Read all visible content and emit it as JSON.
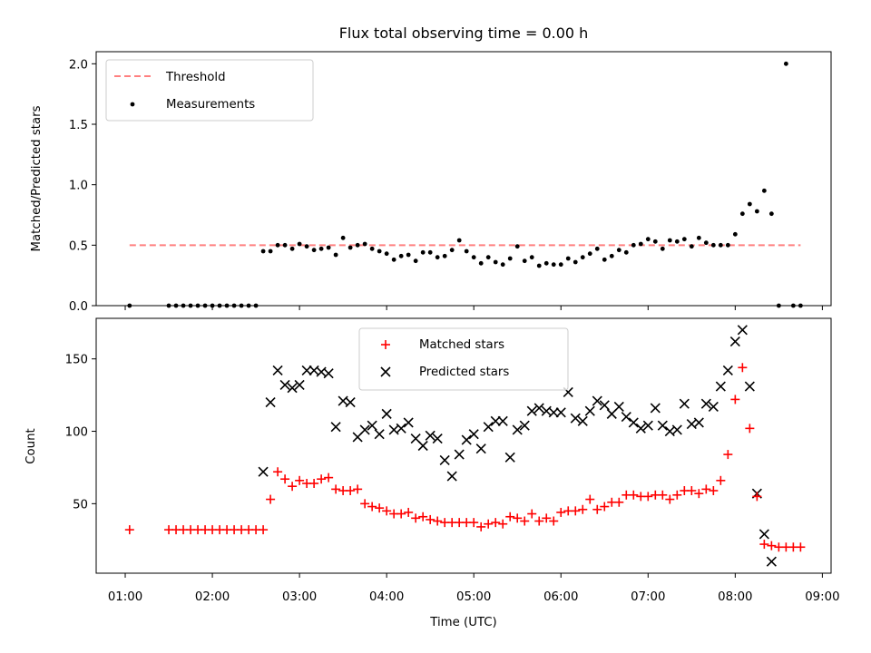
{
  "figure": {
    "title": "Flux total observing time = 0.00 h"
  },
  "colors": {
    "threshold": "#ff8080",
    "measurement": "#000000",
    "matched": "#ff0000",
    "predicted": "#000000"
  },
  "chart_data": [
    {
      "type": "scatter",
      "ylabel": "Matched/Predicted stars",
      "xlabel": "",
      "xlim": [
        "00:40",
        "09:06"
      ],
      "ylim": [
        0,
        2.1
      ],
      "yticks": [
        0.0,
        0.5,
        1.0,
        1.5,
        2.0
      ],
      "ytick_labels": [
        "0.0",
        "0.5",
        "1.0",
        "1.5",
        "2.0"
      ],
      "legend": {
        "position": "upper-left",
        "entries": [
          "Threshold",
          "Measurements"
        ]
      },
      "threshold": {
        "name": "Threshold",
        "y": 0.5,
        "x": [
          "01:03",
          "08:45"
        ],
        "style": "dashed"
      },
      "series": [
        {
          "name": "Measurements",
          "x": [
            "01:03",
            "01:30",
            "01:35",
            "01:40",
            "01:45",
            "01:50",
            "01:55",
            "02:00",
            "02:05",
            "02:10",
            "02:15",
            "02:20",
            "02:25",
            "02:30",
            "02:35",
            "02:40",
            "02:45",
            "02:50",
            "02:55",
            "03:00",
            "03:05",
            "03:10",
            "03:15",
            "03:20",
            "03:25",
            "03:30",
            "03:35",
            "03:40",
            "03:45",
            "03:50",
            "03:55",
            "04:00",
            "04:05",
            "04:10",
            "04:15",
            "04:20",
            "04:25",
            "04:30",
            "04:35",
            "04:40",
            "04:45",
            "04:50",
            "04:55",
            "05:00",
            "05:05",
            "05:10",
            "05:15",
            "05:20",
            "05:25",
            "05:30",
            "05:35",
            "05:40",
            "05:45",
            "05:50",
            "05:55",
            "06:00",
            "06:05",
            "06:10",
            "06:15",
            "06:20",
            "06:25",
            "06:30",
            "06:35",
            "06:40",
            "06:45",
            "06:50",
            "06:55",
            "07:00",
            "07:05",
            "07:10",
            "07:15",
            "07:20",
            "07:25",
            "07:30",
            "07:35",
            "07:40",
            "07:45",
            "07:50",
            "07:55",
            "08:00",
            "08:05",
            "08:10",
            "08:15",
            "08:20",
            "08:25",
            "08:30",
            "08:35",
            "08:40",
            "08:45"
          ],
          "y": [
            0.0,
            0.0,
            0.0,
            0.0,
            0.0,
            0.0,
            0.0,
            0.0,
            0.0,
            0.0,
            0.0,
            0.0,
            0.0,
            0.0,
            0.45,
            0.45,
            0.5,
            0.5,
            0.47,
            0.51,
            0.49,
            0.46,
            0.47,
            0.48,
            0.42,
            0.56,
            0.48,
            0.5,
            0.51,
            0.47,
            0.45,
            0.43,
            0.38,
            0.41,
            0.42,
            0.37,
            0.44,
            0.44,
            0.4,
            0.41,
            0.46,
            0.54,
            0.45,
            0.4,
            0.35,
            0.4,
            0.36,
            0.34,
            0.39,
            0.49,
            0.37,
            0.4,
            0.33,
            0.35,
            0.34,
            0.34,
            0.39,
            0.36,
            0.4,
            0.43,
            0.47,
            0.38,
            0.41,
            0.46,
            0.44,
            0.5,
            0.51,
            0.55,
            0.53,
            0.47,
            0.54,
            0.53,
            0.55,
            0.49,
            0.56,
            0.52,
            0.5,
            0.5,
            0.5,
            0.59,
            0.76,
            0.84,
            0.78,
            0.95,
            0.76,
            0.0,
            2.0,
            0.0,
            0.0
          ]
        }
      ]
    },
    {
      "type": "scatter",
      "ylabel": "Count",
      "xlabel": "Time (UTC)",
      "xlim": [
        "00:40",
        "09:06"
      ],
      "ylim": [
        2,
        178
      ],
      "yticks": [
        50,
        100,
        150
      ],
      "ytick_labels": [
        "50",
        "100",
        "150"
      ],
      "xticks": [
        "01:00",
        "02:00",
        "03:00",
        "04:00",
        "05:00",
        "06:00",
        "07:00",
        "08:00",
        "09:00"
      ],
      "xtick_labels": [
        "01:00",
        "02:00",
        "03:00",
        "04:00",
        "05:00",
        "06:00",
        "07:00",
        "08:00",
        "09:00"
      ],
      "legend": {
        "position": "upper-center",
        "entries": [
          "Matched stars",
          "Predicted stars"
        ]
      },
      "series": [
        {
          "name": "Matched stars",
          "marker": "plus",
          "x": [
            "01:03",
            "01:30",
            "01:35",
            "01:40",
            "01:45",
            "01:50",
            "01:55",
            "02:00",
            "02:05",
            "02:10",
            "02:15",
            "02:20",
            "02:25",
            "02:30",
            "02:35",
            "02:40",
            "02:45",
            "02:50",
            "02:55",
            "03:00",
            "03:05",
            "03:10",
            "03:15",
            "03:20",
            "03:25",
            "03:30",
            "03:35",
            "03:40",
            "03:45",
            "03:50",
            "03:55",
            "04:00",
            "04:05",
            "04:10",
            "04:15",
            "04:20",
            "04:25",
            "04:30",
            "04:35",
            "04:40",
            "04:45",
            "04:50",
            "04:55",
            "05:00",
            "05:05",
            "05:10",
            "05:15",
            "05:20",
            "05:25",
            "05:30",
            "05:35",
            "05:40",
            "05:45",
            "05:50",
            "05:55",
            "06:00",
            "06:05",
            "06:10",
            "06:15",
            "06:20",
            "06:25",
            "06:30",
            "06:35",
            "06:40",
            "06:45",
            "06:50",
            "06:55",
            "07:00",
            "07:05",
            "07:10",
            "07:15",
            "07:20",
            "07:25",
            "07:30",
            "07:35",
            "07:40",
            "07:45",
            "07:50",
            "07:55",
            "08:00",
            "08:05",
            "08:10",
            "08:15",
            "08:20",
            "08:25",
            "08:30",
            "08:35",
            "08:40",
            "08:45"
          ],
          "y": [
            32,
            32,
            32,
            32,
            32,
            32,
            32,
            32,
            32,
            32,
            32,
            32,
            32,
            32,
            32,
            53,
            72,
            67,
            62,
            66,
            64,
            64,
            67,
            68,
            60,
            59,
            59,
            60,
            50,
            48,
            47,
            45,
            43,
            43,
            44,
            40,
            41,
            39,
            38,
            37,
            37,
            37,
            37,
            37,
            34,
            36,
            37,
            36,
            41,
            40,
            38,
            43,
            38,
            40,
            38,
            44,
            45,
            45,
            46,
            53,
            46,
            48,
            51,
            51,
            56,
            56,
            55,
            55,
            56,
            56,
            53,
            56,
            59,
            59,
            57,
            60,
            59,
            66,
            84,
            122,
            144,
            102,
            55,
            22,
            21,
            20,
            20,
            20,
            20
          ]
        },
        {
          "name": "Predicted stars",
          "marker": "x",
          "x": [
            "02:35",
            "02:40",
            "02:45",
            "02:50",
            "02:55",
            "03:00",
            "03:05",
            "03:10",
            "03:15",
            "03:20",
            "03:25",
            "03:30",
            "03:35",
            "03:40",
            "03:45",
            "03:50",
            "03:55",
            "04:00",
            "04:05",
            "04:10",
            "04:15",
            "04:20",
            "04:25",
            "04:30",
            "04:35",
            "04:40",
            "04:45",
            "04:50",
            "04:55",
            "05:00",
            "05:05",
            "05:10",
            "05:15",
            "05:20",
            "05:25",
            "05:30",
            "05:35",
            "05:40",
            "05:45",
            "05:50",
            "05:55",
            "06:00",
            "06:05",
            "06:10",
            "06:15",
            "06:20",
            "06:25",
            "06:30",
            "06:35",
            "06:40",
            "06:45",
            "06:50",
            "06:55",
            "07:00",
            "07:05",
            "07:10",
            "07:15",
            "07:20",
            "07:25",
            "07:30",
            "07:35",
            "07:40",
            "07:45",
            "07:50",
            "07:55",
            "08:00",
            "08:05",
            "08:10",
            "08:15",
            "08:20",
            "08:25",
            "08:30",
            "08:35"
          ],
          "y": [
            72,
            120,
            142,
            132,
            130,
            132,
            142,
            142,
            141,
            140,
            103,
            121,
            120,
            96,
            101,
            104,
            98,
            112,
            101,
            102,
            106,
            95,
            90,
            97,
            95,
            80,
            69,
            84,
            94,
            98,
            88,
            103,
            107,
            107,
            82,
            101,
            104,
            114,
            116,
            114,
            113,
            113,
            127,
            109,
            107,
            114,
            121,
            118,
            112,
            117,
            110,
            106,
            102,
            104,
            116,
            104,
            100,
            101,
            119,
            105,
            106,
            119,
            117,
            131,
            142,
            162,
            170,
            131,
            57,
            29,
            10,
            null,
            null
          ]
        }
      ]
    }
  ]
}
